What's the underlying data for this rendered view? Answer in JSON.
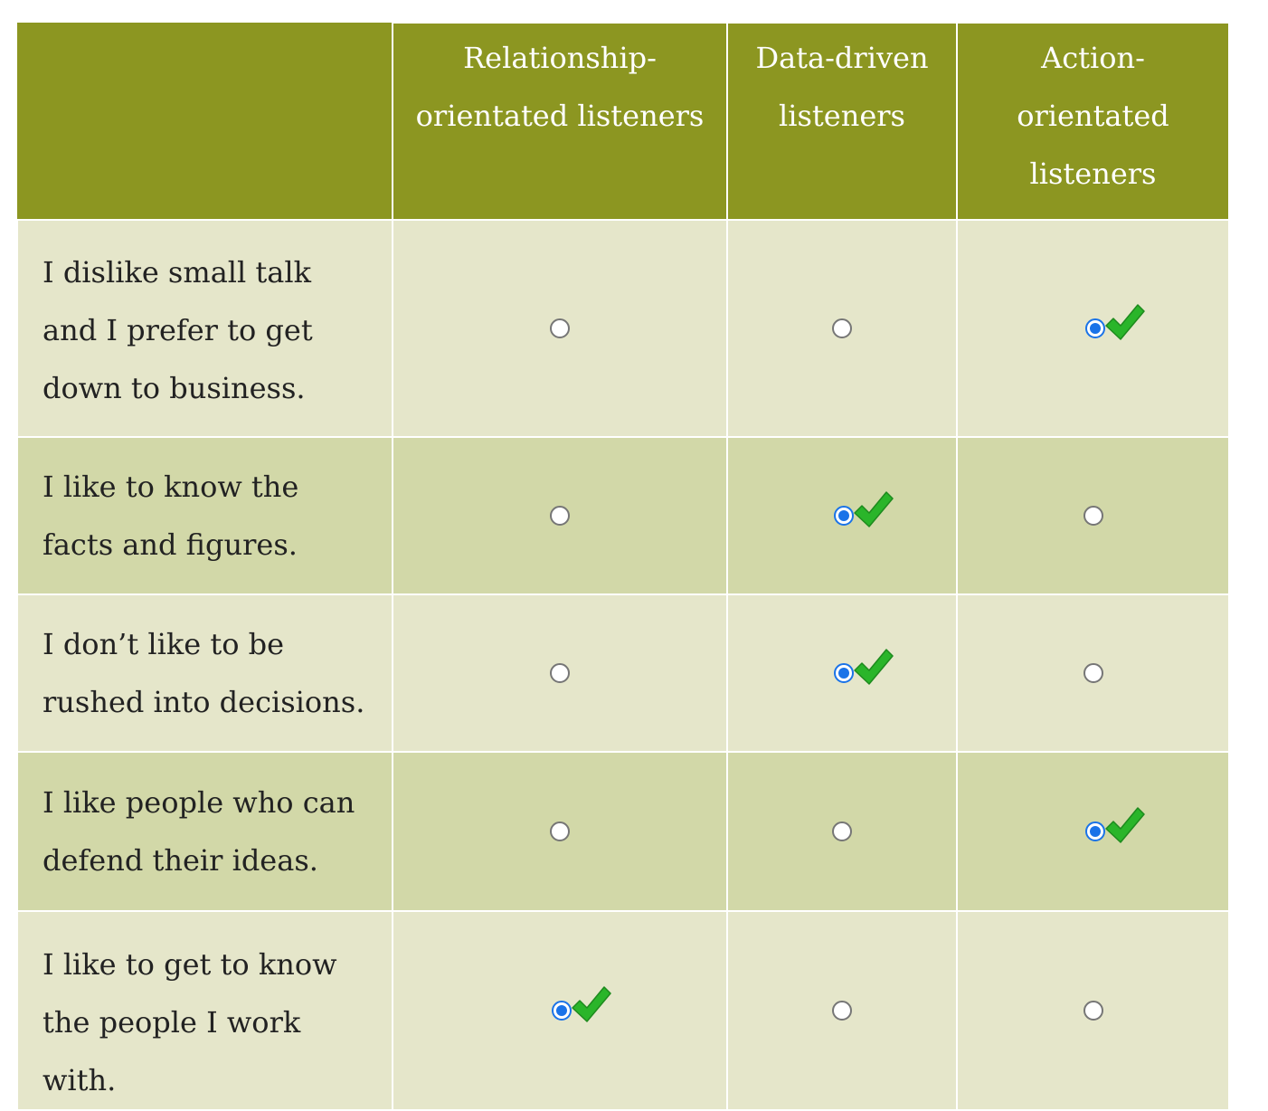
{
  "header": {
    "columns": [
      "",
      "Relationship-\norientated listeners",
      "Data-driven\nlisteners",
      "Action-\norientated\nlisteners"
    ]
  },
  "rows": [
    {
      "statement": "I dislike small talk and I prefer to get down to business.",
      "selected": 2,
      "correct": 2
    },
    {
      "statement": "I like to know the facts and figures.",
      "selected": 1,
      "correct": 1
    },
    {
      "statement": "I don’t like to be rushed into decisions.",
      "selected": 1,
      "correct": 1
    },
    {
      "statement": "I like people who can defend their ideas.",
      "selected": 2,
      "correct": 2
    },
    {
      "statement": "I like to get to know the people I work with.",
      "selected": 0,
      "correct": 0
    }
  ],
  "colors": {
    "header_bg": "#8c9621",
    "row_light": "#e5e6ca",
    "row_dark": "#d2d8a8",
    "radio_selected": "#1a73e8",
    "check": "#2ab52a"
  },
  "icons": {
    "correct": "checkmark-icon"
  }
}
